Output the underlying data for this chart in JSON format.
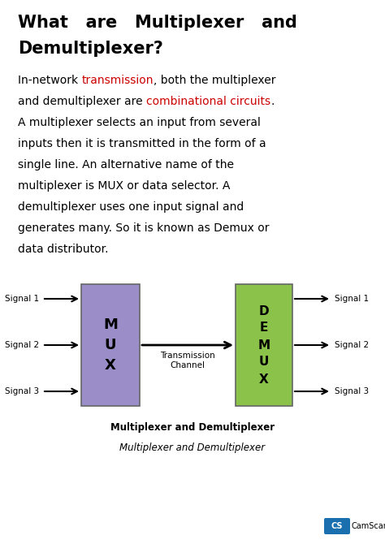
{
  "title_line1": "What   are   Multiplexer   and",
  "title_line2": "Demultiplexer?",
  "title_fontsize": 15,
  "body_fontsize": 10,
  "mux_color": "#9b8dc8",
  "demux_color": "#8bc34a",
  "mux_label": "M\nU\nX",
  "demux_label": "D\nE\nM\nU\nX",
  "signals_in": [
    "Signal 1",
    "Signal 2",
    "Signal 3"
  ],
  "signals_out": [
    "Signal 1",
    "Signal 2",
    "Signal 3"
  ],
  "transmission_label": "Transmission\nChannel",
  "diagram_caption1": "Multiplexer and Demultiplexer",
  "diagram_caption2": "Multiplexer and Demultiplexer",
  "bg_color": "#ffffff",
  "text_color": "#000000",
  "red_color": "#cc0000",
  "font_family": "DejaVu Sans"
}
